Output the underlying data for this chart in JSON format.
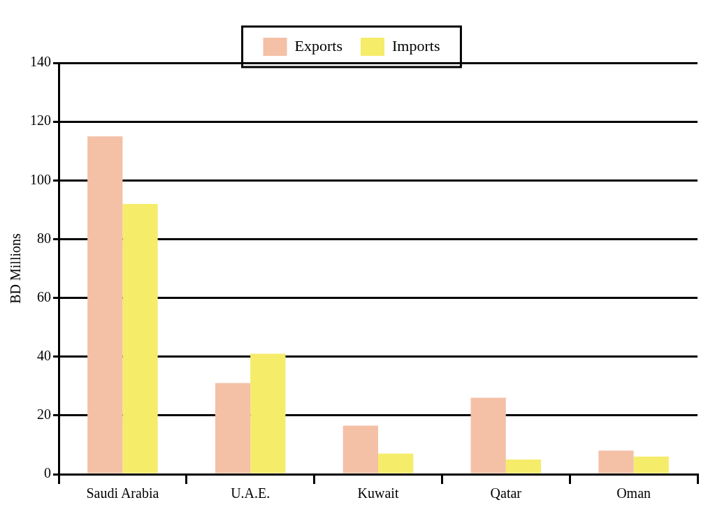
{
  "chart_data": {
    "type": "bar",
    "ylabel": "BD Millions",
    "categories": [
      "Saudi Arabia",
      "U.A.E.",
      "Kuwait",
      "Qatar",
      "Oman"
    ],
    "series": [
      {
        "name": "Exports",
        "color": "#f4c0a6",
        "values": [
          115,
          31,
          16.5,
          26,
          8
        ]
      },
      {
        "name": "Imports",
        "color": "#f5ec6a",
        "values": [
          92,
          41,
          7,
          5,
          6
        ]
      }
    ],
    "ylim": [
      0,
      140
    ],
    "yticks": [
      0,
      20,
      40,
      60,
      80,
      100,
      120,
      140
    ],
    "grid": "y",
    "legend": "top"
  }
}
